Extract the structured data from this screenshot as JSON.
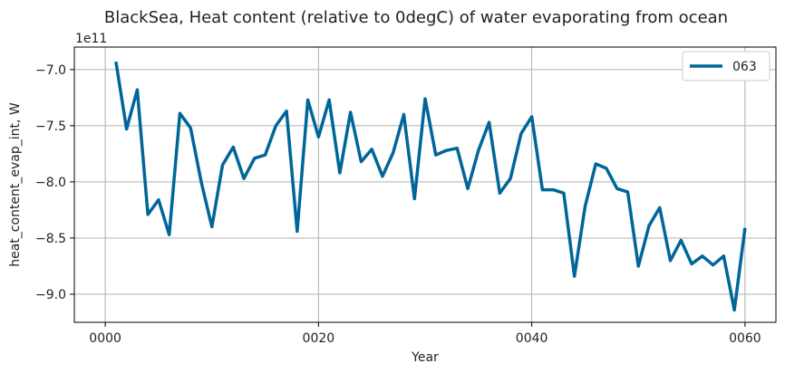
{
  "chart_data": {
    "type": "line",
    "title": "BlackSea, Heat content (relative to 0degC) of water evaporating from ocean",
    "xlabel": "Year",
    "ylabel": "heat_content_evap_int, W",
    "y_multiplier_label": "1e11",
    "xlim": [
      -2.9,
      62.9
    ],
    "ylim": [
      -9.25,
      -6.8
    ],
    "x_ticks": [
      0,
      20,
      40,
      60
    ],
    "x_tick_labels": [
      "0000",
      "0020",
      "0040",
      "0060"
    ],
    "y_ticks": [
      -9.0,
      -8.5,
      -8.0,
      -7.5,
      -7.0
    ],
    "y_tick_labels": [
      "−9.0",
      "−8.5",
      "−8.0",
      "−7.5",
      "−7.0"
    ],
    "grid": true,
    "legend_position": "top-right",
    "series": [
      {
        "name": "063",
        "color": "#006699",
        "x": [
          1,
          2,
          3,
          4,
          5,
          6,
          7,
          8,
          9,
          10,
          11,
          12,
          13,
          14,
          15,
          16,
          17,
          18,
          19,
          20,
          21,
          22,
          23,
          24,
          25,
          26,
          27,
          28,
          29,
          30,
          31,
          32,
          33,
          34,
          35,
          36,
          37,
          38,
          39,
          40,
          41,
          42,
          43,
          44,
          45,
          46,
          47,
          48,
          49,
          50,
          51,
          52,
          53,
          54,
          55,
          56,
          57,
          58,
          59,
          60
        ],
        "values": [
          -6.93,
          -7.53,
          -7.18,
          -8.29,
          -8.16,
          -8.47,
          -7.39,
          -7.52,
          -8.0,
          -8.4,
          -7.85,
          -7.69,
          -7.97,
          -7.79,
          -7.76,
          -7.5,
          -7.37,
          -8.44,
          -7.27,
          -7.6,
          -7.27,
          -7.92,
          -7.38,
          -7.82,
          -7.71,
          -7.95,
          -7.74,
          -7.4,
          -8.15,
          -7.26,
          -7.76,
          -7.72,
          -7.7,
          -8.06,
          -7.72,
          -7.47,
          -8.1,
          -7.97,
          -7.57,
          -7.42,
          -8.07,
          -8.07,
          -8.1,
          -8.84,
          -8.22,
          -7.84,
          -7.88,
          -8.06,
          -8.09,
          -8.75,
          -8.39,
          -8.23,
          -8.7,
          -8.52,
          -8.73,
          -8.66,
          -8.74,
          -8.66,
          -9.14,
          -8.41
        ]
      }
    ]
  }
}
